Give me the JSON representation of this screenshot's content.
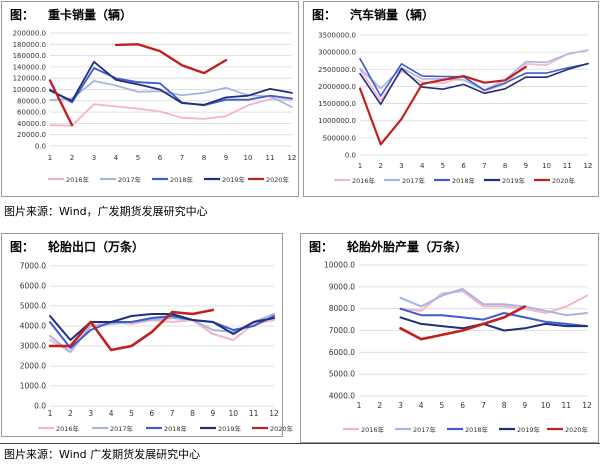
{
  "page": {
    "source_note_top": "图片来源：Wind，广发期货发展研究中心",
    "source_note_bottom": "图片来源：Wind 广发期货发展研究中心"
  },
  "panels": [
    {
      "label": "图：",
      "title": "重卡销量（辆）"
    },
    {
      "label": "图：",
      "title": "汽车销量（辆）"
    },
    {
      "label": "图：",
      "title": "轮胎出口（万条）"
    },
    {
      "label": "图：",
      "title": "轮胎外胎产量（万条）"
    }
  ],
  "colors": {
    "2016年": "#f4b6c6",
    "2017年": "#a7b4e6",
    "2018年": "#3f5bd0",
    "2019年": "#1f2f78",
    "2020年": "#c0201e"
  },
  "chart_data": [
    {
      "type": "line",
      "title": "重卡销量（辆）",
      "x": [
        1,
        2,
        3,
        4,
        5,
        6,
        7,
        8,
        9,
        10,
        11,
        12
      ],
      "xlim": [
        1,
        12
      ],
      "ylim": [
        0,
        200000
      ],
      "ystep": 20000,
      "ytick_labels": [
        "0.0",
        "20000.0",
        "40000.0",
        "60000.0",
        "80000.0",
        "100000.0",
        "120000.0",
        "140000.0",
        "160000.0",
        "180000.0",
        "200000.0"
      ],
      "series": [
        {
          "name": "2016年",
          "values": [
            37000,
            36000,
            74000,
            70000,
            66000,
            61000,
            50000,
            48000,
            53000,
            72000,
            83000,
            82000
          ]
        },
        {
          "name": "2017年",
          "values": [
            81000,
            84000,
            115000,
            107000,
            96000,
            97000,
            90000,
            94000,
            103000,
            90000,
            88000,
            69000
          ]
        },
        {
          "name": "2018年",
          "values": [
            100000,
            77000,
            138000,
            120000,
            113000,
            111000,
            77000,
            72000,
            82000,
            82000,
            89000,
            84000
          ]
        },
        {
          "name": "2019年",
          "values": [
            98000,
            80000,
            149000,
            117000,
            109000,
            100000,
            76000,
            73000,
            86000,
            89000,
            101000,
            94000
          ]
        },
        {
          "name": "2020年",
          "values": [
            116000,
            37000,
            null,
            179000,
            180000,
            168000,
            143000,
            129000,
            152000,
            null,
            null,
            null
          ]
        }
      ]
    },
    {
      "type": "line",
      "title": "汽车销量（辆）",
      "x": [
        1,
        2,
        3,
        4,
        5,
        6,
        7,
        8,
        9,
        10,
        11,
        12
      ],
      "xlim": [
        1,
        12
      ],
      "ylim": [
        0,
        3500000
      ],
      "ystep": 500000,
      "ytick_labels": [
        "0.0",
        "500000.0",
        "1000000.0",
        "1500000.0",
        "2000000.0",
        "2500000.0",
        "3000000.0",
        "3500000.0"
      ],
      "series": [
        {
          "name": "2016年",
          "values": [
            2500000,
            1590000,
            2440000,
            2120000,
            2090000,
            2280000,
            1860000,
            2070000,
            2660000,
            2620000,
            2940000,
            3060000
          ]
        },
        {
          "name": "2017年",
          "values": [
            2520000,
            1940000,
            2540000,
            2220000,
            2220000,
            2190000,
            1890000,
            2190000,
            2720000,
            2700000,
            2940000,
            3060000
          ]
        },
        {
          "name": "2018年",
          "values": [
            2810000,
            1720000,
            2660000,
            2300000,
            2290000,
            2280000,
            1890000,
            2100000,
            2390000,
            2390000,
            2540000,
            2660000
          ]
        },
        {
          "name": "2019年",
          "values": [
            2370000,
            1480000,
            2520000,
            1980000,
            1920000,
            2060000,
            1800000,
            1930000,
            2270000,
            2270000,
            2490000,
            2670000
          ]
        },
        {
          "name": "2020年",
          "values": [
            1940000,
            310000,
            1050000,
            2070000,
            2190000,
            2300000,
            2110000,
            2180000,
            2570000,
            null,
            null,
            null
          ]
        }
      ]
    },
    {
      "type": "line",
      "title": "轮胎出口（万条）",
      "x": [
        1,
        2,
        3,
        4,
        5,
        6,
        7,
        8,
        9,
        10,
        11,
        12
      ],
      "xlim": [
        1,
        12
      ],
      "ylim": [
        0,
        7000
      ],
      "ystep": 1000,
      "ytick_labels": [
        "0.0",
        "1000.0",
        "2000.0",
        "3000.0",
        "4000.0",
        "5000.0",
        "6000.0",
        "7000.0"
      ],
      "series": [
        {
          "name": "2016年",
          "values": [
            3300,
            2700,
            4000,
            4200,
            4100,
            4300,
            4200,
            4300,
            3600,
            3300,
            4100,
            4300
          ]
        },
        {
          "name": "2017年",
          "values": [
            3500,
            2700,
            4000,
            4100,
            4200,
            4300,
            4400,
            4300,
            3800,
            3700,
            4200,
            4600
          ]
        },
        {
          "name": "2018年",
          "values": [
            4200,
            2900,
            3800,
            4200,
            4200,
            4400,
            4500,
            4300,
            4200,
            3800,
            4000,
            4500
          ]
        },
        {
          "name": "2019年",
          "values": [
            4500,
            3300,
            4200,
            4200,
            4500,
            4600,
            4600,
            4300,
            4200,
            3600,
            4200,
            4400
          ]
        },
        {
          "name": "2020年",
          "values": [
            3000,
            3000,
            4200,
            2800,
            3000,
            3700,
            4700,
            4600,
            4800,
            null,
            null,
            null
          ]
        }
      ]
    },
    {
      "type": "line",
      "title": "轮胎外胎产量（万条）",
      "x": [
        1,
        2,
        3,
        4,
        5,
        6,
        7,
        8,
        9,
        10,
        11,
        12
      ],
      "xlim": [
        1,
        12
      ],
      "ylim": [
        4000,
        10000
      ],
      "ystep": 1000,
      "ytick_labels": [
        "4000.0",
        "5000.0",
        "6000.0",
        "7000.0",
        "8000.0",
        "9000.0",
        "10000.0"
      ],
      "series": [
        {
          "name": "2016年",
          "values": [
            null,
            null,
            8000,
            7900,
            8700,
            8800,
            8100,
            8100,
            8000,
            7800,
            8100,
            8600
          ]
        },
        {
          "name": "2017年",
          "values": [
            null,
            null,
            8500,
            8100,
            8600,
            8900,
            8200,
            8200,
            8100,
            7900,
            7700,
            7800
          ]
        },
        {
          "name": "2018年",
          "values": [
            null,
            null,
            8000,
            7700,
            7700,
            7600,
            7500,
            7800,
            7600,
            7400,
            7300,
            7200
          ]
        },
        {
          "name": "2019年",
          "values": [
            null,
            null,
            7600,
            7300,
            7200,
            7100,
            7300,
            7000,
            7100,
            7300,
            7200,
            7200
          ]
        },
        {
          "name": "2020年",
          "values": [
            null,
            null,
            7100,
            6600,
            6800,
            7000,
            7300,
            7600,
            8100,
            null,
            null,
            null
          ]
        }
      ]
    }
  ]
}
